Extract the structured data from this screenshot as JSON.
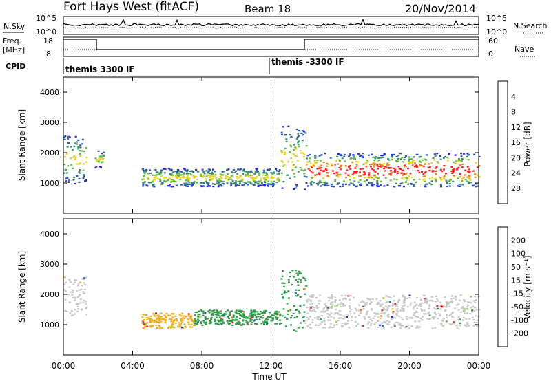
{
  "header": {
    "station": "Fort Hays West (fitACF)",
    "beam": "Beam 18",
    "date": "20/Nov/2014"
  },
  "nsky_panel": {
    "left_label": "N.Sky",
    "right_label": "N.Search",
    "ticks": [
      "10^5",
      "10^0"
    ],
    "right_ticks": [
      "10^5",
      "10^0"
    ]
  },
  "freq_panel": {
    "left_label_1": "Freq.",
    "left_label_2": "[MHz]",
    "ticks": [
      "18",
      "8"
    ],
    "right_label": "Nave",
    "right_ticks": [
      "60",
      "0"
    ]
  },
  "cpid": {
    "label": "CPID",
    "segments": [
      "themis 3300 IF",
      "themis -3300 IF"
    ]
  },
  "axes": {
    "ylabel": "Slant Range [km]",
    "xlabel": "Time UT",
    "y_ticks": [
      "1000",
      "2000",
      "3000",
      "4000"
    ],
    "x_ticks": [
      "00:00",
      "04:00",
      "08:00",
      "12:00",
      "16:00",
      "20:00",
      "00:00"
    ]
  },
  "power_colorbar": {
    "label": "Power [dB]",
    "ticks": [
      "4",
      "8",
      "12",
      "16",
      "20",
      "24",
      "28"
    ],
    "colors": [
      "#2020ff",
      "#2a55b0",
      "#3a8a70",
      "#5fbf3a",
      "#e8d020",
      "#f08010",
      "#ff2020"
    ]
  },
  "velocity_colorbar": {
    "label": "Velocity [m s⁻¹]",
    "ticks": [
      "200",
      "100",
      "50",
      "15",
      "-15",
      "-50",
      "-100",
      "-200"
    ],
    "colors": [
      "#1d2fb8",
      "#2c70a8",
      "#2f9a45",
      "#7cd83a",
      "#c8c8c8",
      "#f0b020",
      "#f07010",
      "#ff2a2a",
      "#e00000"
    ]
  },
  "chart_data": {
    "type": "heatmap",
    "x_range_hours": [
      0,
      24
    ],
    "y_range_km": [
      0,
      4500
    ],
    "marker_hour": 12,
    "power_regions": [
      {
        "t0": 0.0,
        "t1": 1.3,
        "r0": 1000,
        "r1": 2600
      },
      {
        "t0": 1.8,
        "t1": 2.3,
        "r0": 1500,
        "r1": 2100
      },
      {
        "t0": 4.5,
        "t1": 7.5,
        "r0": 900,
        "r1": 1500
      },
      {
        "t0": 7.5,
        "t1": 12.5,
        "r0": 900,
        "r1": 1500
      },
      {
        "t0": 12.5,
        "t1": 14.0,
        "r0": 800,
        "r1": 2900
      },
      {
        "t0": 14.0,
        "t1": 24.0,
        "r0": 900,
        "r1": 2000
      }
    ],
    "velocity_regions": [
      {
        "t0": 0.0,
        "t1": 1.3,
        "r0": 1300,
        "r1": 2600,
        "v": 0
      },
      {
        "t0": 4.5,
        "t1": 7.5,
        "r0": 900,
        "r1": 1400,
        "v": -50
      },
      {
        "t0": 7.5,
        "t1": 12.5,
        "r0": 1000,
        "r1": 1500,
        "v": 50
      },
      {
        "t0": 12.5,
        "t1": 14.0,
        "r0": 800,
        "r1": 2900,
        "v": 50
      },
      {
        "t0": 14.0,
        "t1": 24.0,
        "r0": 900,
        "r1": 2000,
        "v": 0
      }
    ]
  }
}
